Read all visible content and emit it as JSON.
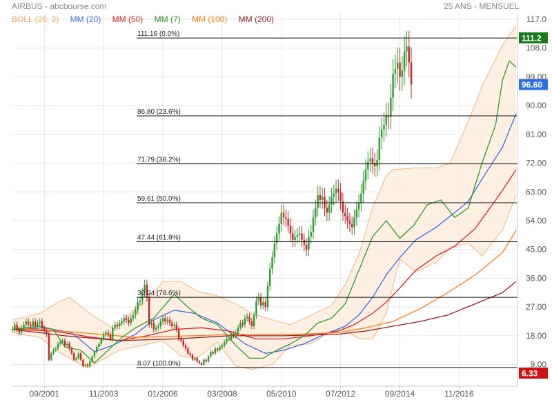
{
  "header": {
    "title": "AIRBUS - abcbourse.com",
    "period": "25 ANS - MENSUEL"
  },
  "colors": {
    "bull": "#2a9a2a",
    "bear": "#cc2222",
    "grid": "#e6e6e6",
    "axis": "#c8c8c8"
  },
  "chart_data": {
    "type": "candlestick",
    "title": "AIRBUS - abcbourse.com",
    "subtitle": "25 ANS - MENSUEL",
    "frequency": "monthly",
    "x_ticks": [
      "09/2001",
      "11/2003",
      "01/2006",
      "03/2008",
      "05/2010",
      "07/2012",
      "09/2014",
      "11/2016"
    ],
    "y_ticks": [
      9.0,
      18.0,
      27.0,
      36.0,
      45.0,
      54.0,
      63.0,
      72.0,
      81.0,
      90.0,
      99.0,
      108.0,
      117.0
    ],
    "ylim": [
      6.33,
      117.0
    ],
    "xlim": [
      "2000-07",
      "2018-12"
    ],
    "grid": true,
    "legend": [
      {
        "name": "BOLL (20, 2)",
        "color": "#f4a460"
      },
      {
        "name": "MM (20)",
        "color": "#4169e1"
      },
      {
        "name": "MM (50)",
        "color": "#dd2222"
      },
      {
        "name": "MM (7)",
        "color": "#2a9a2a"
      },
      {
        "name": "MM (100)",
        "color": "#ff7f1e"
      },
      {
        "name": "MM (200)",
        "color": "#9b1c1c"
      }
    ],
    "fibonacci": [
      {
        "value": 111.16,
        "pct": "0.0%",
        "label": "111.16  (0.0%)"
      },
      {
        "value": 86.8,
        "pct": "23.6%",
        "label": "86.80  (23.6%)"
      },
      {
        "value": 71.79,
        "pct": "38.2%",
        "label": "71.79  (38.2%)"
      },
      {
        "value": 59.61,
        "pct": "50.0%",
        "label": "59.61  (50.0%)"
      },
      {
        "value": 47.44,
        "pct": "61.8%",
        "label": "47.44  (61.8%)"
      },
      {
        "value": 30.04,
        "pct": "78.6%",
        "label": "30.04  (78.6%)"
      },
      {
        "value": 8.07,
        "pct": "100.0%",
        "label": "8.07  (100.0%)"
      }
    ],
    "price_tags": [
      {
        "value": 111.2,
        "label": "111.2",
        "color": "#1a7a1a"
      },
      {
        "value": 96.6,
        "label": "96.60",
        "color": "#2f6fe0"
      },
      {
        "value": 6.33,
        "label": "6.33",
        "color": "#cc1111"
      }
    ],
    "close_series": {
      "start": "2000-07",
      "values": [
        20.0,
        21.5,
        20.0,
        19.0,
        20.5,
        21.5,
        22.5,
        21.5,
        21.0,
        22.5,
        21.0,
        22.0,
        22.5,
        20.5,
        19.5,
        18.5,
        10.5,
        12.5,
        13.5,
        14.0,
        15.5,
        16.0,
        16.5,
        15.0,
        15.5,
        14.0,
        12.5,
        10.5,
        11.0,
        12.5,
        10.5,
        8.5,
        9.0,
        8.5,
        10.0,
        11.5,
        13.0,
        14.5,
        15.5,
        17.0,
        18.5,
        19.0,
        18.5,
        17.0,
        20.5,
        21.5,
        21.0,
        22.0,
        22.5,
        23.5,
        23.0,
        22.0,
        23.5,
        24.5,
        26.0,
        28.5,
        29.0,
        31.5,
        34.0,
        30.0,
        21.5,
        22.0,
        20.0,
        20.5,
        21.0,
        22.5,
        23.5,
        22.5,
        23.0,
        22.0,
        21.0,
        21.5,
        20.0,
        17.0,
        16.5,
        15.0,
        14.0,
        12.5,
        12.0,
        10.5,
        11.0,
        10.0,
        9.5,
        9.0,
        10.5,
        10.0,
        11.5,
        13.0,
        12.5,
        14.0,
        13.5,
        14.5,
        15.0,
        16.0,
        17.0,
        17.0,
        18.5,
        18.0,
        19.0,
        20.5,
        22.0,
        21.5,
        23.5,
        24.0,
        22.5,
        21.0,
        24.5,
        29.0,
        30.0,
        27.5,
        28.5,
        27.0,
        33.5,
        39.0,
        42.5,
        47.0,
        50.0,
        53.0,
        56.5,
        55.0,
        54.5,
        52.5,
        50.0,
        48.0,
        49.0,
        49.5,
        50.0,
        48.0,
        46.5,
        45.0,
        49.0,
        50.5,
        55.0,
        58.0,
        62.0,
        60.5,
        61.5,
        58.0,
        56.5,
        59.0,
        61.5,
        62.5,
        64.0,
        63.0,
        60.0,
        56.5,
        55.5,
        54.0,
        53.0,
        52.0,
        55.0,
        57.5,
        59.5,
        62.5,
        66.5,
        70.0,
        72.5,
        73.5,
        72.0,
        71.0,
        73.0,
        80.0,
        82.5,
        84.0,
        87.0,
        86.5,
        92.5,
        100.0,
        101.5,
        103.5,
        99.0,
        101.0,
        107.0,
        108.5,
        103.5,
        96.6
      ]
    },
    "overlays": [
      {
        "name": "BOLL (20, 2) upper",
        "color": "#f4a460",
        "points": [
          [
            "2000-07",
            23.0
          ],
          [
            "2001-07",
            25.0
          ],
          [
            "2002-03",
            28.5
          ],
          [
            "2002-08",
            30.0
          ],
          [
            "2003-06",
            24.5
          ],
          [
            "2004-04",
            20.0
          ],
          [
            "2004-12",
            26.0
          ],
          [
            "2005-08",
            30.5
          ],
          [
            "2006-01",
            35.0
          ],
          [
            "2006-09",
            35.0
          ],
          [
            "2007-04",
            32.0
          ],
          [
            "2008-01",
            30.5
          ],
          [
            "2008-09",
            28.0
          ],
          [
            "2009-04",
            25.0
          ],
          [
            "2010-01",
            23.0
          ],
          [
            "2010-09",
            21.5
          ],
          [
            "2011-06",
            24.5
          ],
          [
            "2012-03",
            27.5
          ],
          [
            "2012-09",
            34.0
          ],
          [
            "2013-03",
            43.5
          ],
          [
            "2013-09",
            58.0
          ],
          [
            "2014-03",
            68.0
          ],
          [
            "2014-06",
            70.0
          ],
          [
            "2015-04",
            70.5
          ],
          [
            "2016-01",
            70.5
          ],
          [
            "2016-07",
            72.0
          ],
          [
            "2017-03",
            85.0
          ],
          [
            "2017-09",
            96.0
          ],
          [
            "2018-06",
            109.0
          ],
          [
            "2018-12",
            115.0
          ]
        ]
      },
      {
        "name": "BOLL (20, 2) lower",
        "color": "#f4a460",
        "points": [
          [
            "2000-07",
            19.0
          ],
          [
            "2001-07",
            17.5
          ],
          [
            "2002-03",
            13.0
          ],
          [
            "2002-08",
            11.0
          ],
          [
            "2003-04",
            8.0
          ],
          [
            "2004-01",
            11.5
          ],
          [
            "2004-06",
            13.5
          ],
          [
            "2005-04",
            15.0
          ],
          [
            "2006-01",
            16.5
          ],
          [
            "2006-09",
            11.5
          ],
          [
            "2007-04",
            11.0
          ],
          [
            "2008-01",
            16.0
          ],
          [
            "2008-09",
            8.5
          ],
          [
            "2009-04",
            7.5
          ],
          [
            "2010-01",
            9.0
          ],
          [
            "2010-09",
            15.0
          ],
          [
            "2011-06",
            15.5
          ],
          [
            "2012-03",
            19.5
          ],
          [
            "2012-09",
            20.0
          ],
          [
            "2013-03",
            17.0
          ],
          [
            "2013-09",
            17.0
          ],
          [
            "2014-03",
            25.0
          ],
          [
            "2014-09",
            42.0
          ],
          [
            "2015-04",
            38.0
          ],
          [
            "2016-01",
            41.0
          ],
          [
            "2016-07",
            45.5
          ],
          [
            "2017-03",
            47.0
          ],
          [
            "2017-09",
            43.0
          ],
          [
            "2018-06",
            51.0
          ],
          [
            "2018-12",
            62.0
          ]
        ]
      },
      {
        "name": "MM (20)",
        "color": "#4169e1",
        "points": [
          [
            "2000-07",
            20.0
          ],
          [
            "2001-09",
            20.5
          ],
          [
            "2002-09",
            19.0
          ],
          [
            "2003-07",
            13.0
          ],
          [
            "2004-03",
            15.0
          ],
          [
            "2005-01",
            18.5
          ],
          [
            "2005-09",
            23.0
          ],
          [
            "2006-06",
            26.0
          ],
          [
            "2007-03",
            25.0
          ],
          [
            "2008-01",
            22.0
          ],
          [
            "2009-01",
            15.5
          ],
          [
            "2009-10",
            12.5
          ],
          [
            "2010-06",
            13.5
          ],
          [
            "2011-03",
            15.5
          ],
          [
            "2011-12",
            18.5
          ],
          [
            "2012-09",
            21.0
          ],
          [
            "2013-03",
            24.5
          ],
          [
            "2013-09",
            30.0
          ],
          [
            "2014-03",
            37.0
          ],
          [
            "2014-09",
            42.5
          ],
          [
            "2015-04",
            48.0
          ],
          [
            "2016-01",
            52.0
          ],
          [
            "2016-09",
            56.5
          ],
          [
            "2017-03",
            60.0
          ],
          [
            "2017-09",
            67.0
          ],
          [
            "2018-06",
            77.0
          ],
          [
            "2018-12",
            87.5
          ]
        ]
      },
      {
        "name": "MM (50)",
        "color": "#dd2222",
        "points": [
          [
            "2000-07",
            20.0
          ],
          [
            "2002-01",
            19.5
          ],
          [
            "2003-06",
            17.5
          ],
          [
            "2004-06",
            16.5
          ],
          [
            "2005-06",
            18.0
          ],
          [
            "2006-06",
            20.0
          ],
          [
            "2007-06",
            20.5
          ],
          [
            "2008-06",
            19.5
          ],
          [
            "2009-06",
            17.0
          ],
          [
            "2010-06",
            17.0
          ],
          [
            "2011-06",
            18.0
          ],
          [
            "2012-06",
            19.5
          ],
          [
            "2013-01",
            21.5
          ],
          [
            "2013-09",
            25.0
          ],
          [
            "2014-03",
            28.5
          ],
          [
            "2014-09",
            33.0
          ],
          [
            "2015-04",
            38.5
          ],
          [
            "2016-01",
            43.0
          ],
          [
            "2016-09",
            46.0
          ],
          [
            "2017-06",
            51.5
          ],
          [
            "2018-01",
            58.5
          ],
          [
            "2018-06",
            63.5
          ],
          [
            "2018-12",
            70.0
          ]
        ]
      },
      {
        "name": "MM (100)",
        "color": "#ff7f1e",
        "points": [
          [
            "2000-07",
            20.5
          ],
          [
            "2003-01",
            19.0
          ],
          [
            "2005-01",
            17.5
          ],
          [
            "2007-01",
            18.0
          ],
          [
            "2009-01",
            18.5
          ],
          [
            "2011-01",
            18.5
          ],
          [
            "2012-06",
            19.0
          ],
          [
            "2013-06",
            20.5
          ],
          [
            "2014-06",
            22.5
          ],
          [
            "2015-06",
            26.5
          ],
          [
            "2016-06",
            31.5
          ],
          [
            "2017-06",
            37.0
          ],
          [
            "2018-06",
            44.0
          ],
          [
            "2018-12",
            51.0
          ]
        ]
      },
      {
        "name": "MM (200)",
        "color": "#9b1c1c",
        "points": [
          [
            "2000-07",
            20.0
          ],
          [
            "2002-06",
            18.0
          ],
          [
            "2004-06",
            16.5
          ],
          [
            "2006-06",
            17.0
          ],
          [
            "2008-06",
            18.0
          ],
          [
            "2010-06",
            18.0
          ],
          [
            "2012-06",
            18.5
          ],
          [
            "2013-06",
            19.5
          ],
          [
            "2014-06",
            21.0
          ],
          [
            "2015-06",
            22.5
          ],
          [
            "2016-06",
            24.5
          ],
          [
            "2017-06",
            28.0
          ],
          [
            "2018-06",
            31.5
          ],
          [
            "2018-12",
            35.0
          ]
        ]
      },
      {
        "name": "MM (7)",
        "color": "#2a9a2a",
        "points": [
          [
            "2000-07",
            20.0
          ],
          [
            "2001-07",
            21.0
          ],
          [
            "2002-01",
            20.0
          ],
          [
            "2002-06",
            14.5
          ],
          [
            "2003-01",
            13.5
          ],
          [
            "2003-07",
            9.5
          ],
          [
            "2004-01",
            13.5
          ],
          [
            "2004-07",
            17.5
          ],
          [
            "2005-01",
            20.5
          ],
          [
            "2005-09",
            23.5
          ],
          [
            "2006-06",
            31.0
          ],
          [
            "2006-12",
            27.0
          ],
          [
            "2007-06",
            23.5
          ],
          [
            "2008-01",
            21.5
          ],
          [
            "2008-09",
            15.0
          ],
          [
            "2009-03",
            11.0
          ],
          [
            "2009-09",
            11.0
          ],
          [
            "2010-03",
            13.5
          ],
          [
            "2010-09",
            15.5
          ],
          [
            "2011-03",
            18.0
          ],
          [
            "2011-09",
            22.0
          ],
          [
            "2012-03",
            23.5
          ],
          [
            "2012-09",
            28.0
          ],
          [
            "2013-03",
            38.5
          ],
          [
            "2013-09",
            49.0
          ],
          [
            "2014-03",
            54.0
          ],
          [
            "2014-09",
            48.5
          ],
          [
            "2015-03",
            52.5
          ],
          [
            "2015-09",
            59.0
          ],
          [
            "2016-03",
            60.5
          ],
          [
            "2016-09",
            55.0
          ],
          [
            "2017-03",
            58.0
          ],
          [
            "2017-09",
            72.0
          ],
          [
            "2018-03",
            84.0
          ],
          [
            "2018-06",
            98.0
          ],
          [
            "2018-09",
            104.0
          ],
          [
            "2018-12",
            102.0
          ]
        ]
      }
    ]
  }
}
